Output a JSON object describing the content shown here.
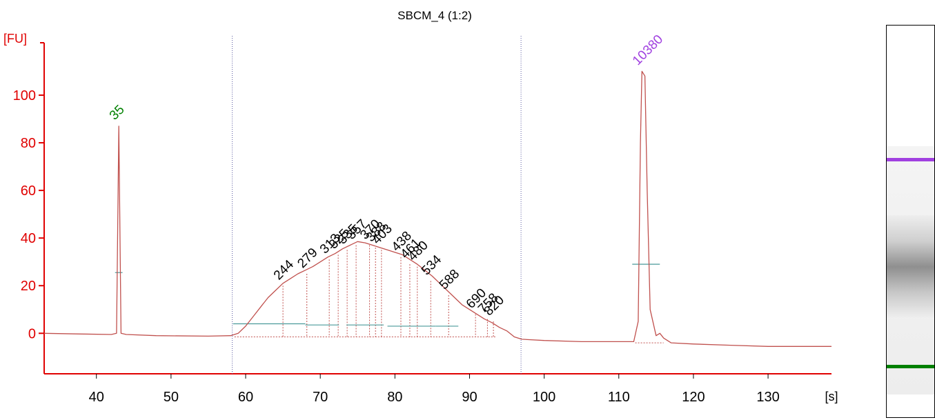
{
  "chart_data": {
    "type": "line",
    "title": "SBCM_4 (1:2)",
    "xlabel": "[s]",
    "ylabel": "[FU]",
    "xlim": [
      33,
      138.5
    ],
    "ylim": [
      -17,
      122
    ],
    "xticks": [
      40,
      50,
      60,
      70,
      80,
      90,
      100,
      110,
      120,
      130
    ],
    "yticks": [
      0,
      20,
      40,
      60,
      80,
      100
    ],
    "colors": {
      "trace": "#c0504d",
      "axis": "#e00000",
      "marker_lower": "#008000",
      "marker_upper": "#a040e0",
      "baseline_segment": "#4a9a9a",
      "region_line": "#5a5aa0"
    },
    "region_bounds": [
      58.2,
      96.9
    ],
    "markers": [
      {
        "label": "35",
        "time": 43.0,
        "height": 87,
        "color": "#008000"
      },
      {
        "label": "10380",
        "time": 113.1,
        "height": 110,
        "color": "#a040e0"
      }
    ],
    "peak_labels": [
      {
        "label": "244",
        "time": 65.0,
        "height": 21
      },
      {
        "label": "279",
        "time": 68.2,
        "height": 26
      },
      {
        "label": "313",
        "time": 71.2,
        "height": 32
      },
      {
        "label": "325",
        "time": 72.4,
        "height": 34
      },
      {
        "label": "335",
        "time": 73.6,
        "height": 36
      },
      {
        "label": "357",
        "time": 74.8,
        "height": 38
      },
      {
        "label": "370",
        "time": 76.6,
        "height": 38
      },
      {
        "label": "388",
        "time": 77.4,
        "height": 37
      },
      {
        "label": "403",
        "time": 78.2,
        "height": 36
      },
      {
        "label": "438",
        "time": 80.8,
        "height": 33
      },
      {
        "label": "461",
        "time": 82.0,
        "height": 30
      },
      {
        "label": "480",
        "time": 83.0,
        "height": 29
      },
      {
        "label": "534",
        "time": 84.8,
        "height": 23
      },
      {
        "label": "588",
        "time": 87.2,
        "height": 17
      },
      {
        "label": "690",
        "time": 90.8,
        "height": 9
      },
      {
        "label": "758",
        "time": 92.4,
        "height": 7
      },
      {
        "label": "820",
        "time": 93.2,
        "height": 6
      }
    ],
    "trace": [
      [
        33,
        0
      ],
      [
        38,
        -0.3
      ],
      [
        42,
        -0.5
      ],
      [
        42.7,
        0
      ],
      [
        43.0,
        87
      ],
      [
        43.3,
        0
      ],
      [
        44,
        -0.5
      ],
      [
        48,
        -1
      ],
      [
        55,
        -1.2
      ],
      [
        58,
        -1
      ],
      [
        59,
        0
      ],
      [
        60,
        3
      ],
      [
        61,
        7
      ],
      [
        62,
        11
      ],
      [
        63,
        15
      ],
      [
        64,
        18
      ],
      [
        65,
        21
      ],
      [
        66,
        23
      ],
      [
        67,
        25
      ],
      [
        68,
        26.5
      ],
      [
        69,
        28
      ],
      [
        70,
        30
      ],
      [
        71,
        32
      ],
      [
        72,
        33.5
      ],
      [
        73,
        35.5
      ],
      [
        74,
        37
      ],
      [
        75,
        38.5
      ],
      [
        76,
        38
      ],
      [
        77,
        37
      ],
      [
        78,
        36
      ],
      [
        79,
        35
      ],
      [
        80,
        34
      ],
      [
        81,
        33
      ],
      [
        82,
        31
      ],
      [
        83,
        29
      ],
      [
        84,
        26.5
      ],
      [
        85,
        24
      ],
      [
        86,
        21
      ],
      [
        87,
        18
      ],
      [
        88,
        15
      ],
      [
        89,
        12
      ],
      [
        90,
        10
      ],
      [
        91,
        8
      ],
      [
        92,
        6
      ],
      [
        93,
        4.5
      ],
      [
        94,
        2.5
      ],
      [
        95,
        1
      ],
      [
        96,
        -1.5
      ],
      [
        97,
        -2.5
      ],
      [
        100,
        -3
      ],
      [
        105,
        -3.5
      ],
      [
        110,
        -3.5
      ],
      [
        112,
        -3.5
      ],
      [
        112.6,
        5
      ],
      [
        112.9,
        80
      ],
      [
        113.1,
        110
      ],
      [
        113.5,
        108
      ],
      [
        113.8,
        60
      ],
      [
        114.2,
        10
      ],
      [
        115,
        -1
      ],
      [
        115.5,
        0
      ],
      [
        116,
        -2
      ],
      [
        117,
        -4
      ],
      [
        120,
        -4.5
      ],
      [
        125,
        -5
      ],
      [
        130,
        -5.5
      ],
      [
        138.5,
        -5.5
      ]
    ],
    "baselines": [
      {
        "x1": 58.3,
        "x2": 68.0,
        "y": 4
      },
      {
        "x1": 68.0,
        "x2": 72.5,
        "y": 3.5
      },
      {
        "x1": 73.5,
        "x2": 78.5,
        "y": 3.5
      },
      {
        "x1": 79.0,
        "x2": 85.5,
        "y": 3
      },
      {
        "x1": 85.5,
        "x2": 88.5,
        "y": 3
      },
      {
        "x1": 42.5,
        "x2": 43.5,
        "y": 25.5
      },
      {
        "x1": 111.8,
        "x2": 115.5,
        "y": 29
      }
    ]
  }
}
